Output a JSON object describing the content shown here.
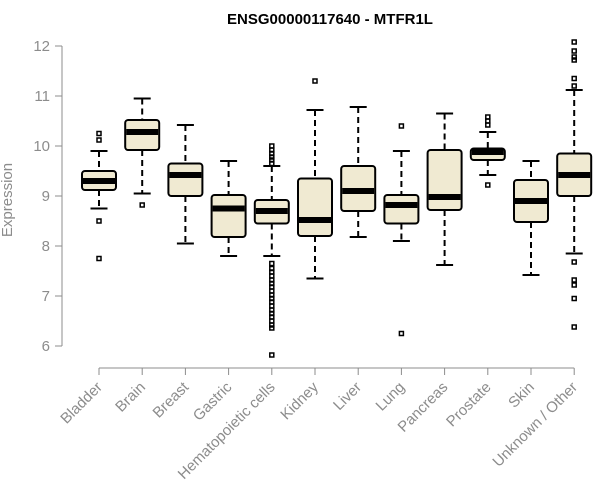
{
  "chart_data": {
    "type": "boxplot",
    "title": "ENSG00000117640 - MTFR1L",
    "xlabel": "",
    "ylabel": "Expression",
    "ylim": [
      5.7,
      12.1
    ],
    "yticks": [
      6,
      7,
      8,
      9,
      10,
      11,
      12
    ],
    "categories": [
      "Bladder",
      "Brain",
      "Breast",
      "Gastric",
      "Hematopoietic cells",
      "Kidney",
      "Liver",
      "Lung",
      "Pancreas",
      "Prostate",
      "Skin",
      "Unknown / Other"
    ],
    "box_fill": "#f0ead2",
    "boxes": [
      {
        "name": "Bladder",
        "whisker_low": 8.75,
        "q1": 9.12,
        "median": 9.3,
        "q3": 9.5,
        "whisker_high": 9.9,
        "outliers": [
          10.25,
          10.12,
          8.5,
          7.75
        ]
      },
      {
        "name": "Brain",
        "whisker_low": 9.05,
        "q1": 9.92,
        "median": 10.28,
        "q3": 10.52,
        "whisker_high": 10.95,
        "outliers": [
          8.82
        ]
      },
      {
        "name": "Breast",
        "whisker_low": 8.05,
        "q1": 9.0,
        "median": 9.42,
        "q3": 9.65,
        "whisker_high": 10.42,
        "outliers": []
      },
      {
        "name": "Gastric",
        "whisker_low": 7.8,
        "q1": 8.18,
        "median": 8.75,
        "q3": 9.02,
        "whisker_high": 9.7,
        "outliers": []
      },
      {
        "name": "Hematopoietic cells",
        "whisker_low": 7.8,
        "q1": 8.45,
        "median": 8.7,
        "q3": 8.92,
        "whisker_high": 9.6,
        "outliers": [
          10.0,
          9.92,
          9.85,
          9.78,
          9.72,
          9.65,
          7.65,
          7.55,
          7.48,
          7.4,
          7.32,
          7.25,
          7.18,
          7.1,
          7.02,
          6.95,
          6.88,
          6.8,
          6.72,
          6.65,
          6.58,
          6.5,
          6.42,
          6.36,
          5.82
        ]
      },
      {
        "name": "Kidney",
        "whisker_low": 7.35,
        "q1": 8.2,
        "median": 8.52,
        "q3": 9.35,
        "whisker_high": 10.72,
        "outliers": [
          11.3
        ]
      },
      {
        "name": "Liver",
        "whisker_low": 8.18,
        "q1": 8.7,
        "median": 9.1,
        "q3": 9.6,
        "whisker_high": 10.78,
        "outliers": []
      },
      {
        "name": "Lung",
        "whisker_low": 8.1,
        "q1": 8.45,
        "median": 8.82,
        "q3": 9.02,
        "whisker_high": 9.9,
        "outliers": [
          10.4,
          6.25
        ]
      },
      {
        "name": "Pancreas",
        "whisker_low": 7.62,
        "q1": 8.72,
        "median": 8.98,
        "q3": 9.92,
        "whisker_high": 10.65,
        "outliers": []
      },
      {
        "name": "Prostate",
        "whisker_low": 9.42,
        "q1": 9.72,
        "median": 9.88,
        "q3": 9.95,
        "whisker_high": 10.28,
        "outliers": [
          10.58,
          10.5,
          10.42,
          9.22
        ]
      },
      {
        "name": "Skin",
        "whisker_low": 7.42,
        "q1": 8.48,
        "median": 8.9,
        "q3": 9.32,
        "whisker_high": 9.7,
        "outliers": []
      },
      {
        "name": "Unknown / Other",
        "whisker_low": 7.85,
        "q1": 9.0,
        "median": 9.42,
        "q3": 9.85,
        "whisker_high": 11.12,
        "outliers": [
          12.08,
          11.9,
          11.78,
          11.72,
          11.35,
          11.2,
          7.68,
          7.32,
          7.22,
          6.95,
          6.38
        ]
      }
    ]
  }
}
